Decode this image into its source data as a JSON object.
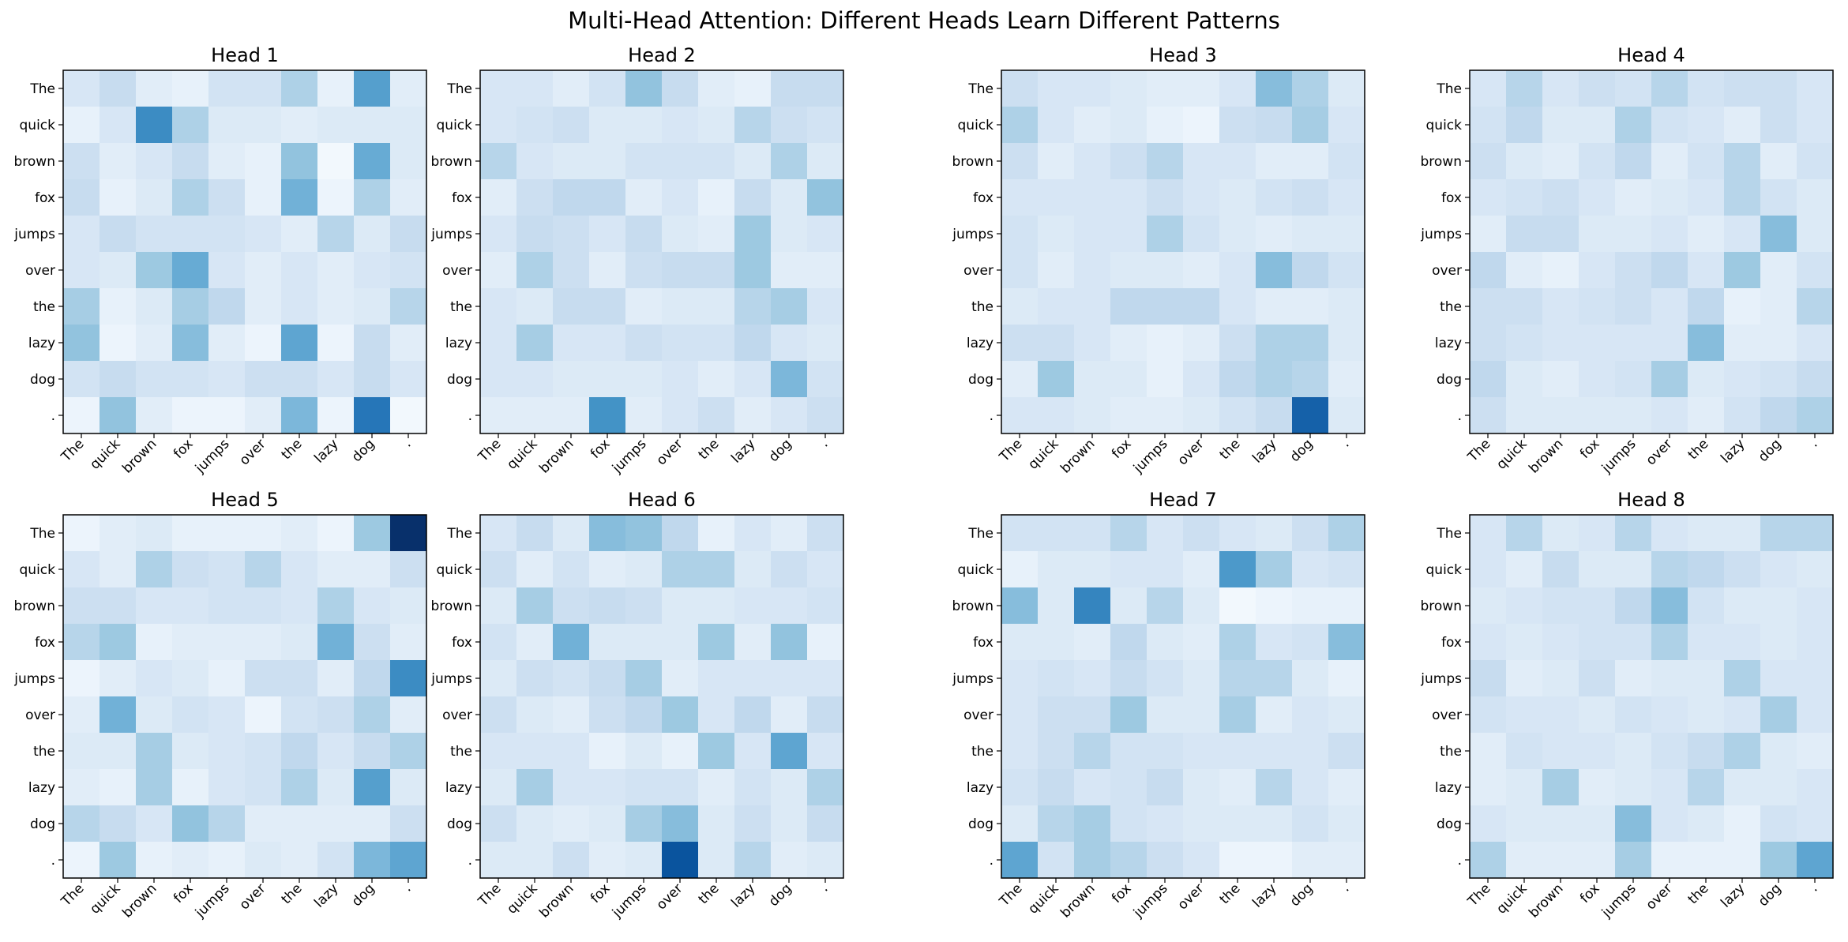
{
  "chart_data": {
    "type": "heatmap",
    "title": "Multi-Head Attention: Different Heads Learn Different Patterns",
    "colormap": "Blues",
    "tokens": [
      "The",
      "quick",
      "brown",
      "fox",
      "jumps",
      "over",
      "the",
      "lazy",
      "dog",
      "."
    ],
    "scale": [
      0,
      0.37
    ],
    "heads": [
      {
        "title": "Head 1",
        "values": [
          [
            0.06,
            0.09,
            0.04,
            0.03,
            0.07,
            0.07,
            0.12,
            0.03,
            0.21,
            0.04
          ],
          [
            0.03,
            0.06,
            0.24,
            0.12,
            0.05,
            0.05,
            0.04,
            0.05,
            0.05,
            0.05
          ],
          [
            0.08,
            0.04,
            0.06,
            0.09,
            0.04,
            0.03,
            0.15,
            0.01,
            0.19,
            0.05
          ],
          [
            0.09,
            0.03,
            0.05,
            0.12,
            0.08,
            0.03,
            0.18,
            0.02,
            0.12,
            0.04
          ],
          [
            0.06,
            0.09,
            0.07,
            0.07,
            0.07,
            0.06,
            0.04,
            0.11,
            0.05,
            0.09
          ],
          [
            0.06,
            0.05,
            0.14,
            0.19,
            0.06,
            0.04,
            0.06,
            0.04,
            0.06,
            0.07
          ],
          [
            0.13,
            0.03,
            0.05,
            0.13,
            0.1,
            0.04,
            0.06,
            0.04,
            0.05,
            0.11
          ],
          [
            0.15,
            0.02,
            0.04,
            0.16,
            0.04,
            0.02,
            0.2,
            0.02,
            0.09,
            0.04
          ],
          [
            0.07,
            0.09,
            0.07,
            0.07,
            0.06,
            0.08,
            0.08,
            0.06,
            0.09,
            0.06
          ],
          [
            0.02,
            0.15,
            0.04,
            0.02,
            0.02,
            0.04,
            0.17,
            0.02,
            0.27,
            0.01
          ]
        ]
      },
      {
        "title": "Head 2",
        "values": [
          [
            0.06,
            0.06,
            0.04,
            0.07,
            0.15,
            0.09,
            0.04,
            0.03,
            0.09,
            0.09
          ],
          [
            0.06,
            0.07,
            0.08,
            0.05,
            0.05,
            0.06,
            0.05,
            0.11,
            0.08,
            0.07
          ],
          [
            0.11,
            0.06,
            0.05,
            0.05,
            0.07,
            0.07,
            0.07,
            0.05,
            0.12,
            0.05
          ],
          [
            0.04,
            0.08,
            0.1,
            0.1,
            0.04,
            0.06,
            0.03,
            0.09,
            0.05,
            0.15
          ],
          [
            0.06,
            0.09,
            0.08,
            0.06,
            0.09,
            0.05,
            0.04,
            0.14,
            0.05,
            0.06
          ],
          [
            0.04,
            0.12,
            0.08,
            0.04,
            0.08,
            0.09,
            0.09,
            0.14,
            0.04,
            0.04
          ],
          [
            0.06,
            0.05,
            0.09,
            0.09,
            0.04,
            0.05,
            0.05,
            0.11,
            0.13,
            0.06
          ],
          [
            0.06,
            0.13,
            0.06,
            0.06,
            0.08,
            0.07,
            0.07,
            0.1,
            0.06,
            0.05
          ],
          [
            0.06,
            0.06,
            0.05,
            0.05,
            0.05,
            0.06,
            0.04,
            0.06,
            0.17,
            0.07
          ],
          [
            0.04,
            0.04,
            0.04,
            0.23,
            0.04,
            0.06,
            0.08,
            0.04,
            0.06,
            0.08
          ]
        ]
      },
      {
        "title": "Head 3",
        "values": [
          [
            0.08,
            0.06,
            0.06,
            0.05,
            0.04,
            0.04,
            0.06,
            0.16,
            0.12,
            0.05
          ],
          [
            0.12,
            0.06,
            0.04,
            0.05,
            0.03,
            0.02,
            0.08,
            0.09,
            0.13,
            0.06
          ],
          [
            0.08,
            0.04,
            0.06,
            0.08,
            0.11,
            0.06,
            0.06,
            0.04,
            0.04,
            0.07
          ],
          [
            0.06,
            0.06,
            0.06,
            0.06,
            0.08,
            0.06,
            0.05,
            0.07,
            0.08,
            0.06
          ],
          [
            0.07,
            0.05,
            0.06,
            0.06,
            0.12,
            0.07,
            0.05,
            0.04,
            0.05,
            0.05
          ],
          [
            0.07,
            0.04,
            0.06,
            0.05,
            0.05,
            0.04,
            0.06,
            0.16,
            0.1,
            0.07
          ],
          [
            0.05,
            0.06,
            0.06,
            0.1,
            0.1,
            0.1,
            0.06,
            0.04,
            0.04,
            0.05
          ],
          [
            0.08,
            0.08,
            0.06,
            0.04,
            0.03,
            0.04,
            0.08,
            0.12,
            0.12,
            0.05
          ],
          [
            0.04,
            0.14,
            0.05,
            0.05,
            0.03,
            0.06,
            0.1,
            0.12,
            0.11,
            0.04
          ],
          [
            0.06,
            0.06,
            0.05,
            0.04,
            0.04,
            0.05,
            0.07,
            0.09,
            0.3,
            0.05
          ]
        ]
      },
      {
        "title": "Head 4",
        "values": [
          [
            0.06,
            0.11,
            0.06,
            0.08,
            0.07,
            0.11,
            0.07,
            0.08,
            0.08,
            0.06
          ],
          [
            0.07,
            0.1,
            0.05,
            0.05,
            0.12,
            0.07,
            0.06,
            0.04,
            0.08,
            0.06
          ],
          [
            0.08,
            0.05,
            0.04,
            0.07,
            0.1,
            0.04,
            0.07,
            0.11,
            0.04,
            0.07
          ],
          [
            0.06,
            0.07,
            0.08,
            0.06,
            0.04,
            0.05,
            0.06,
            0.11,
            0.07,
            0.05
          ],
          [
            0.04,
            0.09,
            0.09,
            0.05,
            0.05,
            0.06,
            0.04,
            0.06,
            0.16,
            0.05
          ],
          [
            0.1,
            0.04,
            0.03,
            0.06,
            0.08,
            0.1,
            0.06,
            0.14,
            0.04,
            0.07
          ],
          [
            0.08,
            0.08,
            0.06,
            0.07,
            0.08,
            0.06,
            0.1,
            0.03,
            0.04,
            0.11
          ],
          [
            0.08,
            0.07,
            0.06,
            0.06,
            0.06,
            0.06,
            0.16,
            0.04,
            0.04,
            0.06
          ],
          [
            0.1,
            0.05,
            0.04,
            0.06,
            0.07,
            0.13,
            0.05,
            0.06,
            0.07,
            0.09
          ],
          [
            0.08,
            0.05,
            0.05,
            0.05,
            0.05,
            0.06,
            0.04,
            0.07,
            0.1,
            0.12
          ]
        ]
      },
      {
        "title": "Head 5",
        "values": [
          [
            0.02,
            0.04,
            0.05,
            0.03,
            0.03,
            0.03,
            0.04,
            0.02,
            0.14,
            0.37
          ],
          [
            0.06,
            0.04,
            0.12,
            0.08,
            0.07,
            0.11,
            0.06,
            0.04,
            0.04,
            0.08
          ],
          [
            0.08,
            0.08,
            0.06,
            0.06,
            0.07,
            0.07,
            0.06,
            0.12,
            0.06,
            0.05
          ],
          [
            0.11,
            0.14,
            0.03,
            0.04,
            0.04,
            0.04,
            0.05,
            0.18,
            0.08,
            0.04
          ],
          [
            0.02,
            0.04,
            0.06,
            0.05,
            0.03,
            0.08,
            0.08,
            0.04,
            0.1,
            0.24
          ],
          [
            0.04,
            0.18,
            0.05,
            0.07,
            0.06,
            0.02,
            0.07,
            0.08,
            0.12,
            0.04
          ],
          [
            0.05,
            0.05,
            0.13,
            0.05,
            0.06,
            0.07,
            0.1,
            0.06,
            0.09,
            0.12
          ],
          [
            0.04,
            0.03,
            0.13,
            0.03,
            0.06,
            0.07,
            0.12,
            0.05,
            0.21,
            0.05
          ],
          [
            0.11,
            0.09,
            0.06,
            0.15,
            0.11,
            0.04,
            0.04,
            0.04,
            0.04,
            0.08
          ],
          [
            0.02,
            0.14,
            0.03,
            0.04,
            0.03,
            0.05,
            0.04,
            0.07,
            0.17,
            0.2
          ]
        ]
      },
      {
        "title": "Head 6",
        "values": [
          [
            0.06,
            0.09,
            0.05,
            0.16,
            0.15,
            0.1,
            0.03,
            0.06,
            0.04,
            0.08
          ],
          [
            0.08,
            0.04,
            0.07,
            0.04,
            0.05,
            0.12,
            0.12,
            0.05,
            0.08,
            0.06
          ],
          [
            0.05,
            0.13,
            0.08,
            0.09,
            0.08,
            0.05,
            0.05,
            0.06,
            0.06,
            0.07
          ],
          [
            0.07,
            0.04,
            0.18,
            0.05,
            0.05,
            0.05,
            0.14,
            0.04,
            0.15,
            0.03
          ],
          [
            0.05,
            0.08,
            0.07,
            0.09,
            0.13,
            0.04,
            0.06,
            0.06,
            0.06,
            0.06
          ],
          [
            0.08,
            0.05,
            0.04,
            0.08,
            0.1,
            0.14,
            0.06,
            0.1,
            0.04,
            0.09
          ],
          [
            0.06,
            0.06,
            0.06,
            0.03,
            0.05,
            0.03,
            0.14,
            0.06,
            0.2,
            0.06
          ],
          [
            0.05,
            0.13,
            0.06,
            0.06,
            0.07,
            0.07,
            0.04,
            0.07,
            0.05,
            0.12
          ],
          [
            0.08,
            0.05,
            0.04,
            0.05,
            0.13,
            0.16,
            0.05,
            0.08,
            0.05,
            0.09
          ],
          [
            0.05,
            0.05,
            0.08,
            0.04,
            0.05,
            0.32,
            0.05,
            0.11,
            0.04,
            0.05
          ]
        ]
      },
      {
        "title": "Head 7",
        "values": [
          [
            0.07,
            0.07,
            0.07,
            0.11,
            0.06,
            0.08,
            0.06,
            0.05,
            0.08,
            0.12
          ],
          [
            0.03,
            0.05,
            0.05,
            0.06,
            0.06,
            0.04,
            0.22,
            0.13,
            0.06,
            0.07
          ],
          [
            0.16,
            0.05,
            0.25,
            0.05,
            0.11,
            0.05,
            0.01,
            0.02,
            0.03,
            0.03
          ],
          [
            0.05,
            0.05,
            0.04,
            0.1,
            0.05,
            0.04,
            0.12,
            0.06,
            0.07,
            0.16
          ],
          [
            0.06,
            0.07,
            0.06,
            0.09,
            0.07,
            0.05,
            0.11,
            0.11,
            0.05,
            0.03
          ],
          [
            0.06,
            0.08,
            0.08,
            0.14,
            0.05,
            0.05,
            0.13,
            0.04,
            0.06,
            0.05
          ],
          [
            0.06,
            0.08,
            0.11,
            0.07,
            0.07,
            0.06,
            0.06,
            0.06,
            0.06,
            0.08
          ],
          [
            0.07,
            0.09,
            0.06,
            0.07,
            0.09,
            0.05,
            0.04,
            0.11,
            0.06,
            0.04
          ],
          [
            0.05,
            0.11,
            0.13,
            0.07,
            0.06,
            0.05,
            0.05,
            0.05,
            0.07,
            0.05
          ],
          [
            0.2,
            0.07,
            0.13,
            0.11,
            0.08,
            0.06,
            0.02,
            0.02,
            0.04,
            0.04
          ]
        ]
      },
      {
        "title": "Head 8",
        "values": [
          [
            0.06,
            0.11,
            0.05,
            0.06,
            0.11,
            0.06,
            0.05,
            0.05,
            0.11,
            0.11
          ],
          [
            0.06,
            0.04,
            0.09,
            0.05,
            0.05,
            0.11,
            0.1,
            0.08,
            0.06,
            0.05
          ],
          [
            0.05,
            0.06,
            0.07,
            0.07,
            0.1,
            0.16,
            0.07,
            0.05,
            0.05,
            0.06
          ],
          [
            0.06,
            0.05,
            0.06,
            0.07,
            0.07,
            0.12,
            0.06,
            0.06,
            0.05,
            0.06
          ],
          [
            0.09,
            0.04,
            0.05,
            0.08,
            0.04,
            0.05,
            0.05,
            0.12,
            0.06,
            0.06
          ],
          [
            0.07,
            0.06,
            0.06,
            0.05,
            0.07,
            0.06,
            0.05,
            0.06,
            0.13,
            0.06
          ],
          [
            0.04,
            0.07,
            0.06,
            0.06,
            0.05,
            0.07,
            0.09,
            0.12,
            0.05,
            0.04
          ],
          [
            0.04,
            0.05,
            0.13,
            0.04,
            0.05,
            0.06,
            0.11,
            0.05,
            0.05,
            0.06
          ],
          [
            0.06,
            0.05,
            0.05,
            0.05,
            0.16,
            0.06,
            0.05,
            0.03,
            0.07,
            0.06
          ],
          [
            0.12,
            0.04,
            0.04,
            0.04,
            0.13,
            0.03,
            0.03,
            0.03,
            0.14,
            0.2
          ]
        ]
      }
    ]
  }
}
